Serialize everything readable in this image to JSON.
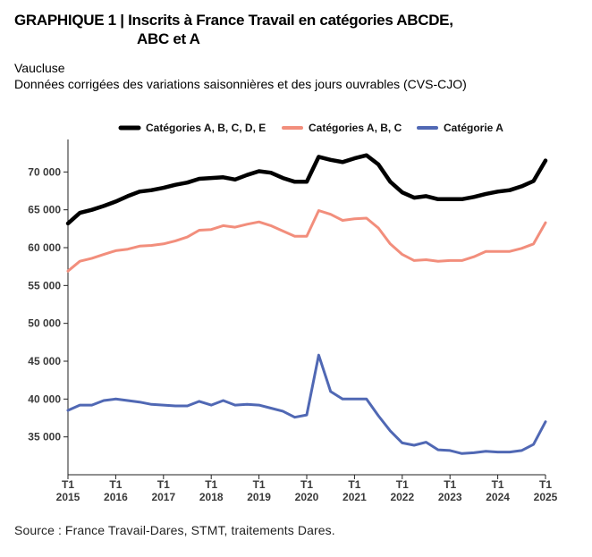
{
  "header": {
    "title_line1": "GRAPHIQUE 1 | Inscrits à France Travail en catégories ABCDE,",
    "title_line2": "ABC et A",
    "subtitle_line1": "Vaucluse",
    "subtitle_line2": "Données corrigées des variations saisonnières et des jours ouvrables (CVS-CJO)"
  },
  "footer": {
    "source": "Source : France Travail-Dares, STMT, traitements Dares."
  },
  "chart_data": {
    "type": "line",
    "title": "GRAPHIQUE 1 | Inscrits à France Travail en catégories ABCDE, ABC et A",
    "subtitle": "Vaucluse — Données corrigées des variations saisonnières et des jours ouvrables (CVS-CJO)",
    "xlabel": "",
    "ylabel": "",
    "ylim": [
      30000,
      75000
    ],
    "yticks": [
      35000,
      40000,
      45000,
      50000,
      55000,
      60000,
      65000,
      70000
    ],
    "ytick_labels": [
      "35 000",
      "40 000",
      "45 000",
      "50 000",
      "55 000",
      "60 000",
      "65 000",
      "70 000"
    ],
    "x_quarters": [
      "2015-T1",
      "2015-T2",
      "2015-T3",
      "2015-T4",
      "2016-T1",
      "2016-T2",
      "2016-T3",
      "2016-T4",
      "2017-T1",
      "2017-T2",
      "2017-T3",
      "2017-T4",
      "2018-T1",
      "2018-T2",
      "2018-T3",
      "2018-T4",
      "2019-T1",
      "2019-T2",
      "2019-T3",
      "2019-T4",
      "2020-T1",
      "2020-T2",
      "2020-T3",
      "2020-T4",
      "2021-T1",
      "2021-T2",
      "2021-T3",
      "2021-T4",
      "2022-T1",
      "2022-T2",
      "2022-T3",
      "2022-T4",
      "2023-T1",
      "2023-T2",
      "2023-T3",
      "2023-T4",
      "2024-T1",
      "2024-T2",
      "2024-T3",
      "2024-T4",
      "2025-T1"
    ],
    "xtick_labels": [
      {
        "line1": "T1",
        "line2": "2015"
      },
      {
        "line1": "T1",
        "line2": "2016"
      },
      {
        "line1": "T1",
        "line2": "2017"
      },
      {
        "line1": "T1",
        "line2": "2018"
      },
      {
        "line1": "T1",
        "line2": "2019"
      },
      {
        "line1": "T1",
        "line2": "2020"
      },
      {
        "line1": "T1",
        "line2": "2021"
      },
      {
        "line1": "T1",
        "line2": "2022"
      },
      {
        "line1": "T1",
        "line2": "2023"
      },
      {
        "line1": "T1",
        "line2": "2024"
      },
      {
        "line1": "T1",
        "line2": "2025"
      }
    ],
    "grid": false,
    "legend_position": "top",
    "series": [
      {
        "name": "Catégories A, B, C, D, E",
        "color": "#000000",
        "values": [
          63200,
          64600,
          65000,
          65500,
          66100,
          66800,
          67400,
          67600,
          67900,
          68300,
          68600,
          69100,
          69200,
          69300,
          69000,
          69600,
          70100,
          69900,
          69200,
          68700,
          68700,
          72000,
          71600,
          71300,
          71800,
          72200,
          71000,
          68700,
          67300,
          66600,
          66800,
          66400,
          66400,
          66400,
          66700,
          67100,
          67400,
          67600,
          68100,
          68800,
          71500
        ]
      },
      {
        "name": "Catégories A, B, C",
        "color": "#f28e7c",
        "values": [
          56900,
          58200,
          58600,
          59100,
          59600,
          59800,
          60200,
          60300,
          60500,
          60900,
          61400,
          62300,
          62400,
          62900,
          62700,
          63100,
          63400,
          62900,
          62200,
          61500,
          61500,
          64900,
          64400,
          63600,
          63800,
          63900,
          62600,
          60500,
          59100,
          58300,
          58400,
          58200,
          58300,
          58300,
          58800,
          59500,
          59500,
          59500,
          59900,
          60500,
          63300
        ]
      },
      {
        "name": "Catégorie A",
        "color": "#5068b4",
        "values": [
          38500,
          39200,
          39200,
          39800,
          40000,
          39800,
          39600,
          39300,
          39200,
          39100,
          39100,
          39700,
          39200,
          39800,
          39200,
          39300,
          39200,
          38800,
          38400,
          37600,
          37900,
          45800,
          41000,
          40000,
          40000,
          40000,
          37800,
          35800,
          34200,
          33900,
          34300,
          33300,
          33200,
          32800,
          32900,
          33100,
          33000,
          33000,
          33200,
          34000,
          37000
        ]
      }
    ]
  }
}
